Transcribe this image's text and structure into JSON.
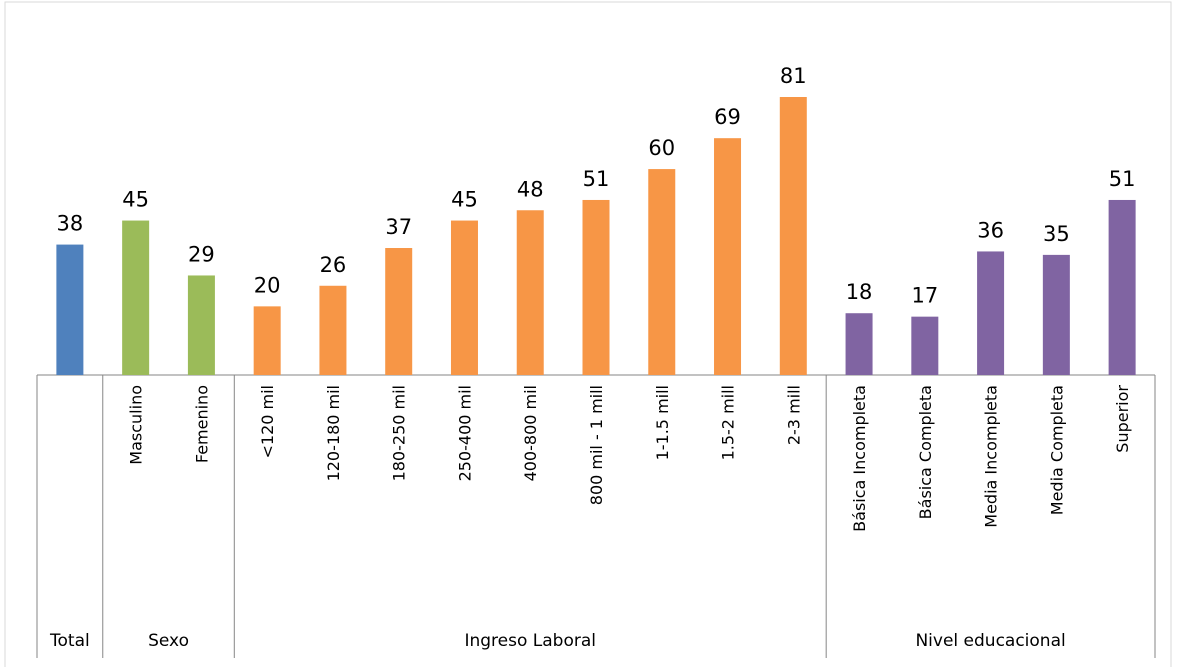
{
  "chart_data": {
    "type": "bar",
    "groups": [
      {
        "name": "Total",
        "color": "#4f81bd",
        "categories": [
          null
        ],
        "values": [
          38
        ]
      },
      {
        "name": "Sexo",
        "color": "#9bbb59",
        "categories": [
          "Masculino",
          "Femenino"
        ],
        "values": [
          45,
          29
        ]
      },
      {
        "name": "Ingreso Laboral",
        "color": "#f79646",
        "categories": [
          "<120 mil",
          "120-180 mil",
          "180-250 mil",
          "250-400 mil",
          "400-800 mil",
          "800 mil - 1 mill",
          "1-1.5 mill",
          "1.5-2 mill",
          "2-3 mill"
        ],
        "values": [
          20,
          26,
          37,
          45,
          48,
          51,
          60,
          69,
          81
        ]
      },
      {
        "name": "Nivel educacional",
        "color": "#8064a2",
        "categories": [
          "Básica Incompleta",
          "Básica Completa",
          "Media Incompleta",
          "Media Completa",
          "Superior"
        ],
        "values": [
          18,
          17,
          36,
          35,
          51
        ]
      }
    ]
  }
}
